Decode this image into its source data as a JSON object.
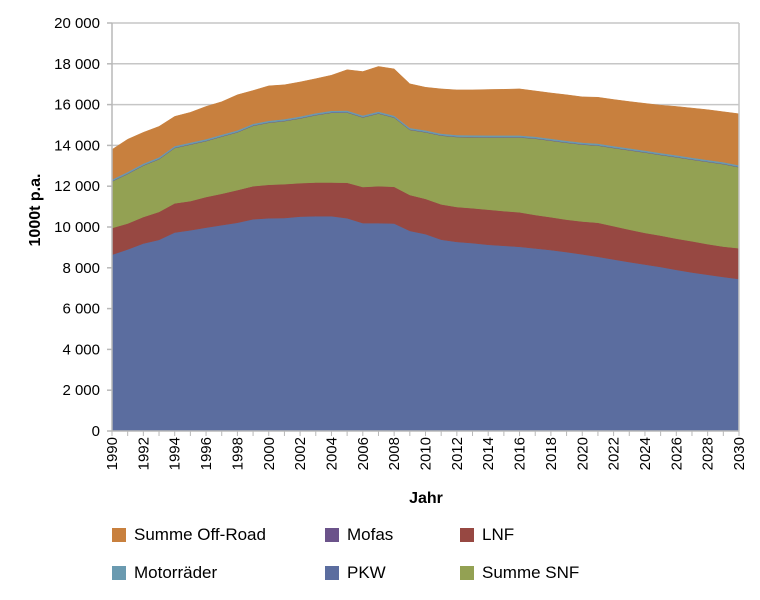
{
  "chart_data": {
    "type": "area",
    "stacked": true,
    "title": "",
    "xlabel": "Jahr",
    "ylabel": "1000t p.a.",
    "ylim": [
      0,
      20000
    ],
    "y_ticks": [
      0,
      2000,
      4000,
      6000,
      8000,
      10000,
      12000,
      14000,
      16000,
      18000,
      20000
    ],
    "y_tick_labels": [
      "0",
      "2 000",
      "4 000",
      "6 000",
      "8 000",
      "10 000",
      "12 000",
      "14 000",
      "16 000",
      "18 000",
      "20 000"
    ],
    "xlim": [
      1990,
      2030
    ],
    "x_tick_labels": [
      "1990",
      "1992",
      "1994",
      "1996",
      "1998",
      "2000",
      "2002",
      "2004",
      "2006",
      "2008",
      "2010",
      "2012",
      "2014",
      "2016",
      "2018",
      "2020",
      "2022",
      "2024",
      "2026",
      "2028",
      "2030"
    ],
    "grid": true,
    "legend_position": "bottom",
    "x": [
      1990,
      1991,
      1992,
      1993,
      1994,
      1995,
      1996,
      1997,
      1998,
      1999,
      2000,
      2001,
      2002,
      2003,
      2004,
      2005,
      2006,
      2007,
      2008,
      2009,
      2010,
      2011,
      2012,
      2013,
      2014,
      2015,
      2016,
      2017,
      2018,
      2019,
      2020,
      2021,
      2022,
      2023,
      2024,
      2025,
      2026,
      2027,
      2028,
      2029,
      2030
    ],
    "series": [
      {
        "name": "PKW",
        "color": "#5b6d9f",
        "values": [
          8640,
          8900,
          9190,
          9370,
          9730,
          9840,
          9970,
          10090,
          10210,
          10380,
          10430,
          10440,
          10510,
          10530,
          10530,
          10430,
          10190,
          10190,
          10170,
          9810,
          9650,
          9380,
          9270,
          9210,
          9130,
          9080,
          9030,
          8950,
          8870,
          8770,
          8660,
          8540,
          8410,
          8280,
          8160,
          8040,
          7900,
          7770,
          7660,
          7550,
          7450
        ]
      },
      {
        "name": "LNF",
        "color": "#974842",
        "values": [
          1310,
          1270,
          1300,
          1370,
          1430,
          1430,
          1500,
          1540,
          1600,
          1620,
          1640,
          1660,
          1640,
          1650,
          1650,
          1740,
          1770,
          1810,
          1800,
          1760,
          1730,
          1730,
          1710,
          1710,
          1720,
          1700,
          1690,
          1640,
          1610,
          1590,
          1610,
          1670,
          1630,
          1590,
          1550,
          1540,
          1530,
          1530,
          1500,
          1490,
          1510
        ]
      },
      {
        "name": "Summe SNF",
        "color": "#93a153",
        "values": [
          2280,
          2430,
          2520,
          2580,
          2710,
          2770,
          2740,
          2800,
          2830,
          2960,
          3040,
          3090,
          3170,
          3300,
          3420,
          3440,
          3410,
          3560,
          3390,
          3190,
          3260,
          3370,
          3430,
          3480,
          3540,
          3610,
          3670,
          3740,
          3750,
          3770,
          3770,
          3780,
          3830,
          3890,
          3940,
          3950,
          3990,
          4000,
          4030,
          4040,
          3970
        ]
      },
      {
        "name": "Mofas",
        "color": "#6b538a",
        "values": [
          20,
          20,
          20,
          20,
          20,
          20,
          20,
          20,
          20,
          20,
          20,
          20,
          20,
          20,
          20,
          20,
          20,
          20,
          20,
          20,
          20,
          20,
          20,
          20,
          20,
          20,
          20,
          20,
          20,
          20,
          20,
          20,
          20,
          20,
          20,
          20,
          20,
          20,
          20,
          20,
          20
        ]
      },
      {
        "name": "Motorräder",
        "color": "#6a9ab0",
        "values": [
          80,
          80,
          80,
          80,
          80,
          80,
          80,
          80,
          80,
          80,
          80,
          80,
          80,
          80,
          80,
          80,
          80,
          80,
          80,
          80,
          80,
          80,
          80,
          80,
          80,
          80,
          80,
          80,
          80,
          80,
          80,
          80,
          80,
          80,
          80,
          80,
          80,
          80,
          80,
          80,
          80
        ]
      },
      {
        "name": "Summe Off-Road",
        "color": "#c8803e",
        "values": [
          1470,
          1600,
          1530,
          1510,
          1450,
          1480,
          1600,
          1610,
          1740,
          1630,
          1710,
          1680,
          1690,
          1690,
          1740,
          2000,
          2150,
          2210,
          2290,
          2160,
          2110,
          2190,
          2210,
          2220,
          2250,
          2260,
          2280,
          2240,
          2240,
          2250,
          2240,
          2270,
          2280,
          2290,
          2310,
          2340,
          2390,
          2430,
          2460,
          2470,
          2520
        ]
      }
    ],
    "legend": [
      {
        "label": "Summe Off-Road",
        "color": "#c8803e"
      },
      {
        "label": "Mofas",
        "color": "#6b538a"
      },
      {
        "label": "LNF",
        "color": "#974842"
      },
      {
        "label": "Motorräder",
        "color": "#6a9ab0"
      },
      {
        "label": "PKW",
        "color": "#5b6d9f"
      },
      {
        "label": "Summe SNF",
        "color": "#93a153"
      }
    ]
  }
}
